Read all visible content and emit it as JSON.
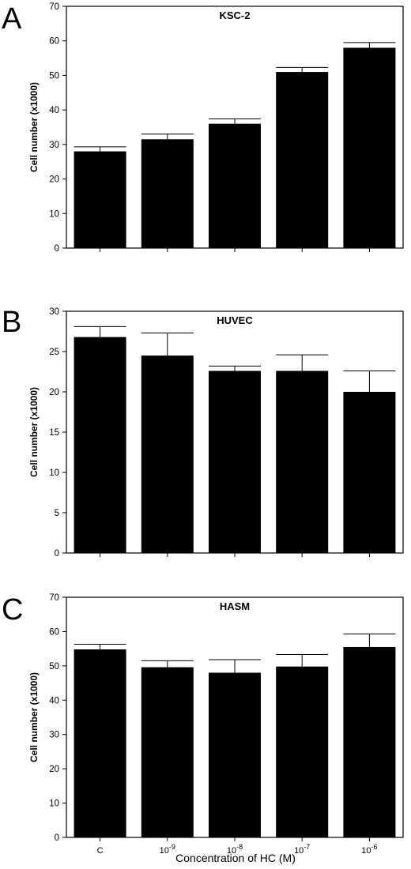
{
  "figure": {
    "xlabel": "Concentration of HC (M)"
  },
  "chart_data": [
    {
      "type": "bar",
      "panel": "A",
      "title": "KSC-2",
      "ylabel": "Cell number (x1000)",
      "xlabel": "",
      "ylim": [
        0,
        70
      ],
      "yticks": [
        0,
        10,
        20,
        30,
        40,
        50,
        60,
        70
      ],
      "categories": [
        "C",
        "10-9",
        "10-8",
        "10-7",
        "10-6"
      ],
      "show_category_labels": false,
      "values": [
        28,
        31.5,
        36,
        51,
        58
      ],
      "errors": [
        1.3,
        1.5,
        1.4,
        1.3,
        1.5
      ],
      "bar_color": "#000000"
    },
    {
      "type": "bar",
      "panel": "B",
      "title": "HUVEC",
      "ylabel": "Cell number (x1000)",
      "xlabel": "",
      "ylim": [
        0,
        30
      ],
      "yticks": [
        0,
        5,
        10,
        15,
        20,
        25,
        30
      ],
      "categories": [
        "C",
        "10-9",
        "10-8",
        "10-7",
        "10-6"
      ],
      "show_category_labels": false,
      "values": [
        26.8,
        24.5,
        22.6,
        22.6,
        20
      ],
      "errors": [
        1.3,
        2.8,
        0.6,
        2.0,
        2.6
      ],
      "bar_color": "#000000"
    },
    {
      "type": "bar",
      "panel": "C",
      "title": "HASM",
      "ylabel": "Cell number (x1000)",
      "xlabel": "Concentration of HC (M)",
      "ylim": [
        0,
        70
      ],
      "yticks": [
        0,
        10,
        20,
        30,
        40,
        50,
        60,
        70
      ],
      "categories": [
        "C",
        "10-9",
        "10-8",
        "10-7",
        "10-6"
      ],
      "category_labels": [
        {
          "base": "C",
          "sup": ""
        },
        {
          "base": "10",
          "sup": "-9"
        },
        {
          "base": "10",
          "sup": "-8"
        },
        {
          "base": "10",
          "sup": "-7"
        },
        {
          "base": "10",
          "sup": "-6"
        }
      ],
      "show_category_labels": true,
      "values": [
        54.8,
        49.6,
        48,
        49.8,
        55.5
      ],
      "errors": [
        1.5,
        1.9,
        3.8,
        3.5,
        3.8
      ],
      "bar_color": "#000000"
    }
  ]
}
